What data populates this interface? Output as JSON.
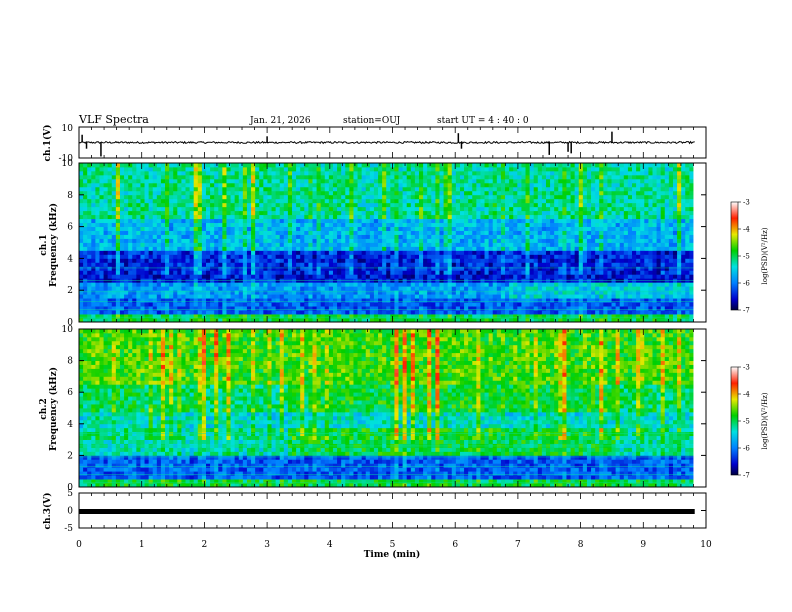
{
  "header": {
    "title": "VLF Spectra",
    "date": "Jan. 21, 2026",
    "station": "station=OUJ",
    "start_ut": "start UT =  4 : 40 : 0"
  },
  "chart_data": [
    {
      "id": "ch1-waveform",
      "type": "line",
      "ylabel": "ch.1(V)",
      "ylim": [
        -10,
        10
      ],
      "y_tick_labels": [
        "10",
        "-10"
      ],
      "xlim": [
        0,
        10
      ],
      "baseline": 0,
      "noise_amplitude": 0.6,
      "spikes": [
        {
          "x": 0.05,
          "y": 5
        },
        {
          "x": 0.12,
          "y": -4
        },
        {
          "x": 0.35,
          "y": -9
        },
        {
          "x": 3.0,
          "y": 4
        },
        {
          "x": 6.05,
          "y": 6
        },
        {
          "x": 6.1,
          "y": -4
        },
        {
          "x": 7.5,
          "y": -8
        },
        {
          "x": 7.8,
          "y": -6
        },
        {
          "x": 7.85,
          "y": -7
        },
        {
          "x": 8.5,
          "y": 7
        }
      ]
    },
    {
      "id": "ch1-spectrogram",
      "type": "heatmap",
      "ylabel_line1": "ch.1",
      "ylabel_line2": "Frequency (kHz)",
      "ylim": [
        0,
        10
      ],
      "y_ticks": [
        0,
        2,
        4,
        6,
        8,
        10
      ],
      "xlim": [
        0,
        9.8
      ],
      "colorbar_label": "log(PSD)(V²/Hz)",
      "colorbar_range": [
        -7,
        -3
      ],
      "colorbar_tick_labels": [
        "-3",
        "-4",
        "-5",
        "-6",
        "-7"
      ]
    },
    {
      "id": "ch2-spectrogram",
      "type": "heatmap",
      "ylabel_line1": "ch.2",
      "ylabel_line2": "Frequency (kHz)",
      "ylim": [
        0,
        10
      ],
      "y_ticks": [
        0,
        2,
        4,
        6,
        8,
        10
      ],
      "xlim": [
        0,
        9.8
      ],
      "colorbar_label": "log(PSD)(V²/Hz)",
      "colorbar_range": [
        -7,
        -3
      ],
      "colorbar_tick_labels": [
        "-3",
        "-4",
        "-5",
        "-6",
        "-7"
      ]
    },
    {
      "id": "ch3-waveform",
      "type": "line",
      "ylabel": "ch.3(V)",
      "ylim": [
        -5,
        5
      ],
      "y_tick_labels": [
        "5",
        "0",
        "-5"
      ],
      "y_tick_values": [
        5,
        0,
        -5
      ],
      "xlim": [
        0,
        10
      ],
      "x": [
        0,
        9.82
      ],
      "y": [
        -0.3,
        -0.3
      ]
    }
  ],
  "xaxis": {
    "label": "Time (min)",
    "range": [
      0,
      10
    ],
    "ticks": [
      0,
      1,
      2,
      3,
      4,
      5,
      6,
      7,
      8,
      9,
      10
    ],
    "tick_labels": [
      "0",
      "1",
      "2",
      "3",
      "4",
      "5",
      "6",
      "7",
      "8",
      "9",
      "10"
    ]
  }
}
